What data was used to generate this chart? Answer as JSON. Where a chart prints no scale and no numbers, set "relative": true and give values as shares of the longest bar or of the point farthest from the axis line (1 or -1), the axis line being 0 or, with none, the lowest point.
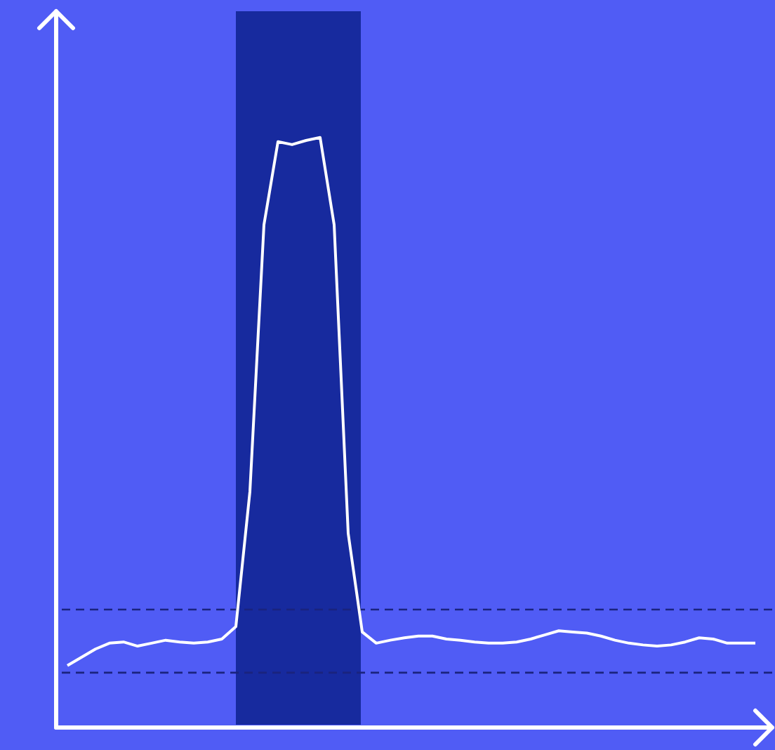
{
  "chart_data": {
    "type": "line",
    "relative": true,
    "categories": [
      null,
      null,
      null,
      null,
      null,
      null,
      null,
      null,
      null,
      null,
      null,
      null,
      null,
      null,
      null,
      null,
      null,
      null,
      null,
      null,
      null,
      null,
      null,
      null,
      null,
      null,
      null,
      null,
      null,
      null,
      null,
      null,
      null,
      null,
      null,
      null,
      null,
      null,
      null,
      null,
      null,
      null,
      null,
      null,
      null,
      null,
      null,
      null,
      null,
      null
    ],
    "series": [
      {
        "color": "#ffffff",
        "values": [
          0.105,
          0.119,
          0.133,
          0.143,
          0.145,
          0.138,
          0.143,
          0.148,
          0.145,
          0.143,
          0.145,
          0.15,
          0.171,
          0.4,
          0.852,
          0.993,
          0.988,
          0.995,
          1,
          0.852,
          0.329,
          0.162,
          0.143,
          0.148,
          0.152,
          0.155,
          0.155,
          0.15,
          0.148,
          0.145,
          0.143,
          0.143,
          0.145,
          0.15,
          0.157,
          0.164,
          0.162,
          0.16,
          0.155,
          0.148,
          0.143,
          0.14,
          0.138,
          0.14,
          0.145,
          0.152,
          0.15,
          0.143,
          0.143,
          0.143
        ]
      }
    ],
    "ref_lines": [
      {
        "axis": "y",
        "value": 0.2,
        "color": "#1a237e",
        "line_style": "dashed"
      },
      {
        "axis": "y",
        "value": 0.093,
        "color": "#1a237e",
        "line_style": "dashed"
      }
    ]
  }
}
